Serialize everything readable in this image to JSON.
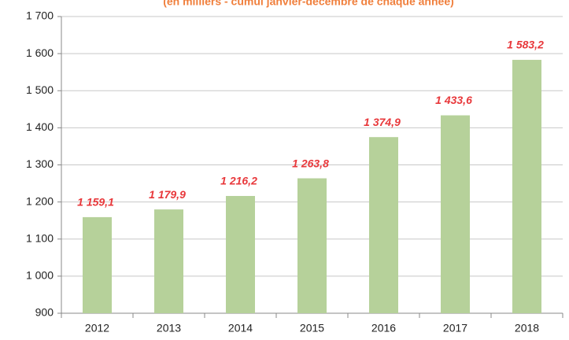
{
  "chart_data": {
    "type": "bar",
    "subtitle": "(en milliers - cumul janvier-décembre de chaque année)",
    "categories": [
      "2012",
      "2013",
      "2014",
      "2015",
      "2016",
      "2017",
      "2018"
    ],
    "values": [
      1159.1,
      1179.9,
      1216.2,
      1263.8,
      1374.9,
      1433.6,
      1583.2
    ],
    "value_labels": [
      "1 159,1",
      "1 179,9",
      "1 216,2",
      "1 263,8",
      "1 374,9",
      "1 433,6",
      "1 583,2"
    ],
    "color": "#b6d19a",
    "ylim": [
      900,
      1700
    ],
    "yticks": [
      {
        "value": 900,
        "label": "900"
      },
      {
        "value": 1000,
        "label": "1 000"
      },
      {
        "value": 1100,
        "label": "1 100"
      },
      {
        "value": 1200,
        "label": "1 200"
      },
      {
        "value": 1300,
        "label": "1 300"
      },
      {
        "value": 1400,
        "label": "1 400"
      },
      {
        "value": 1500,
        "label": "1 500"
      },
      {
        "value": 1600,
        "label": "1 600"
      },
      {
        "value": 1700,
        "label": "1 700"
      }
    ],
    "grid": true
  }
}
